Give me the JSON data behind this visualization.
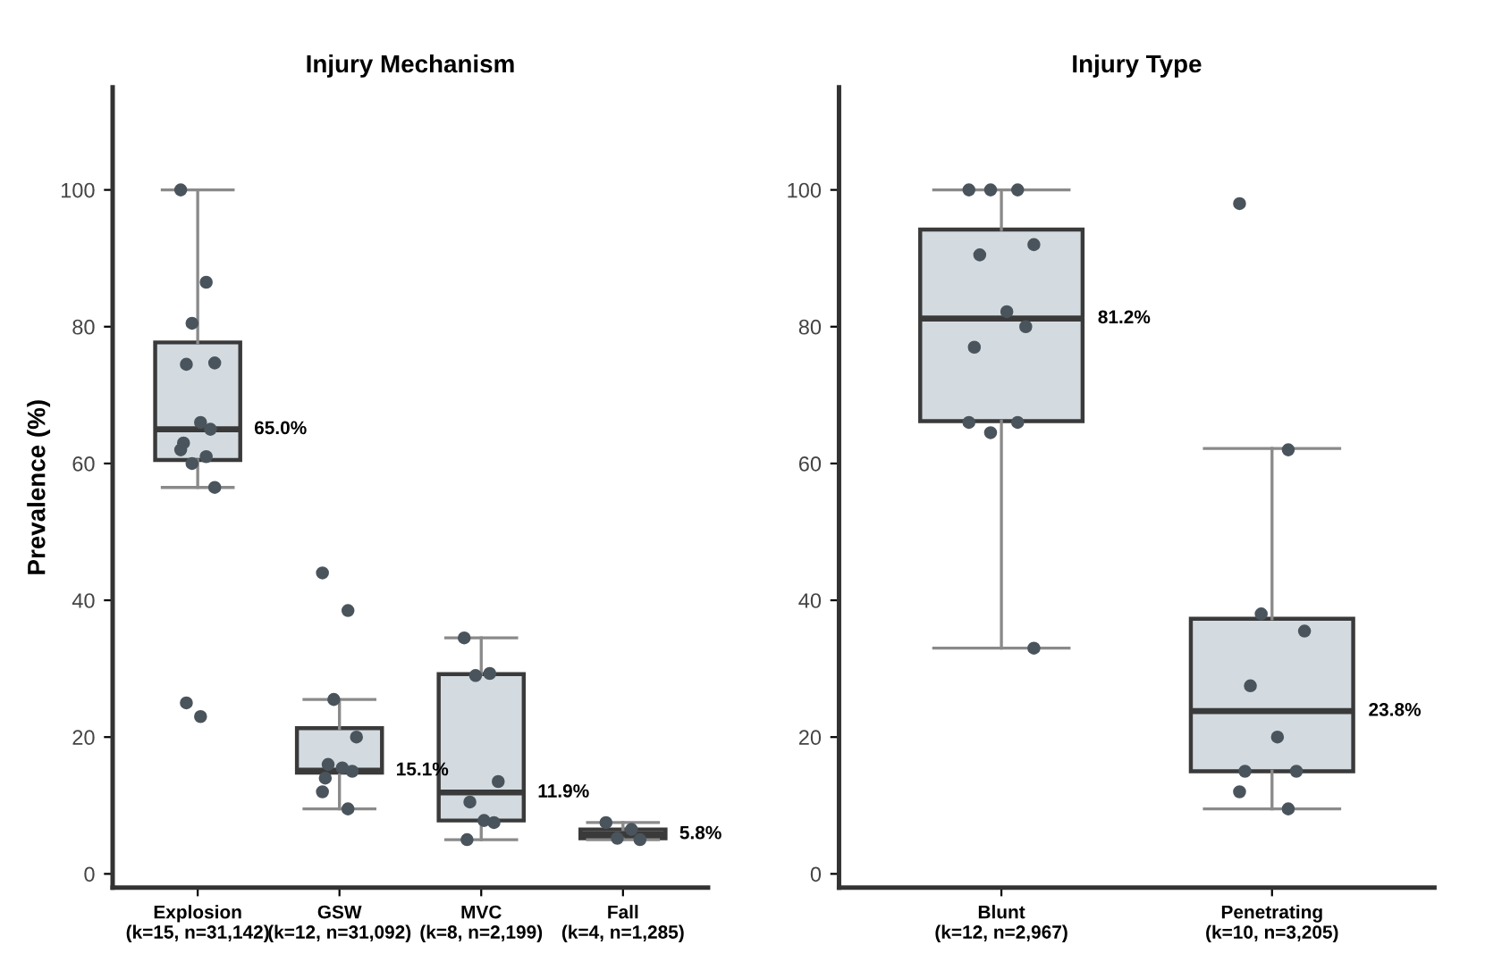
{
  "chart_data": [
    {
      "type": "box",
      "title": "Injury Mechanism",
      "ylabel": "Prevalence (%)",
      "categories": [
        "Explosion\n(k=15, n=31,142)",
        "GSW\n(k=12, n=31,092)",
        "MVC\n(k=8, n=2,199)",
        "Fall\n(k=4, n=1,285)"
      ],
      "color": "#d3dbe0",
      "ylim": [
        -2,
        115
      ],
      "yticks": [
        0,
        20,
        40,
        60,
        80,
        100
      ],
      "grid": false,
      "legend": false,
      "boxes": [
        {
          "low": 56.5,
          "q1": 60.5,
          "median": 65.0,
          "q3": 77.7,
          "high": 100
        },
        {
          "low": 9.5,
          "q1": 14.8,
          "median": 15.1,
          "q3": 21.3,
          "high": 25.5
        },
        {
          "low": 5,
          "q1": 7.8,
          "median": 11.9,
          "q3": 29.2,
          "high": 34.5
        },
        {
          "low": 5,
          "q1": 5.2,
          "median": 5.8,
          "q3": 6.5,
          "high": 7.5
        }
      ],
      "series": [
        {
          "type": "scatter",
          "color": "#4a545c",
          "x": [
            "Explosion\n(k=15, n=31,142)",
            "Explosion\n(k=15, n=31,142)",
            "Explosion\n(k=15, n=31,142)",
            "Explosion\n(k=15, n=31,142)",
            "Explosion\n(k=15, n=31,142)",
            "Explosion\n(k=15, n=31,142)",
            "Explosion\n(k=15, n=31,142)",
            "Explosion\n(k=15, n=31,142)",
            "Explosion\n(k=15, n=31,142)",
            "Explosion\n(k=15, n=31,142)",
            "Explosion\n(k=15, n=31,142)",
            "Explosion\n(k=15, n=31,142)",
            "Explosion\n(k=15, n=31,142)",
            "Explosion\n(k=15, n=31,142)"
          ],
          "values": [
            100,
            86.5,
            80.5,
            74.7,
            74.5,
            66,
            65,
            63,
            62,
            61,
            60,
            56.5,
            25,
            23
          ]
        },
        {
          "type": "scatter",
          "color": "#4a545c",
          "x": [
            "GSW\n(k=12, n=31,092)",
            "GSW\n(k=12, n=31,092)",
            "GSW\n(k=12, n=31,092)",
            "GSW\n(k=12, n=31,092)",
            "GSW\n(k=12, n=31,092)",
            "GSW\n(k=12, n=31,092)",
            "GSW\n(k=12, n=31,092)",
            "GSW\n(k=12, n=31,092)",
            "GSW\n(k=12, n=31,092)",
            "GSW\n(k=12, n=31,092)"
          ],
          "values": [
            44,
            38.5,
            25.5,
            20,
            16,
            15.5,
            15,
            14,
            12,
            9.5
          ]
        },
        {
          "type": "scatter",
          "color": "#4a545c",
          "x": [
            "MVC\n(k=8, n=2,199)",
            "MVC\n(k=8, n=2,199)",
            "MVC\n(k=8, n=2,199)",
            "MVC\n(k=8, n=2,199)",
            "MVC\n(k=8, n=2,199)",
            "MVC\n(k=8, n=2,199)",
            "MVC\n(k=8, n=2,199)",
            "MVC\n(k=8, n=2,199)"
          ],
          "values": [
            34.5,
            29.3,
            29.0,
            13.5,
            10.5,
            7.8,
            7.5,
            5
          ]
        },
        {
          "type": "scatter",
          "color": "#4a545c",
          "x": [
            "Fall\n(k=4, n=1,285)",
            "Fall\n(k=4, n=1,285)",
            "Fall\n(k=4, n=1,285)",
            "Fall\n(k=4, n=1,285)"
          ],
          "values": [
            7.5,
            6.5,
            5.2,
            5
          ]
        }
      ],
      "annotations": [
        "65.0%",
        "15.1%",
        "11.9%",
        "5.8%"
      ]
    },
    {
      "type": "box",
      "title": "Injury Type",
      "categories": [
        "Blunt\n(k=12, n=2,967)",
        "Penetrating\n(k=10, n=3,205)"
      ],
      "color": "#d3dbe0",
      "ylim": [
        -2,
        115
      ],
      "yticks": [
        0,
        20,
        40,
        60,
        80,
        100
      ],
      "grid": false,
      "legend": false,
      "boxes": [
        {
          "low": 33,
          "q1": 66.2,
          "median": 81.2,
          "q3": 94.2,
          "high": 100
        },
        {
          "low": 9.5,
          "q1": 15,
          "median": 23.8,
          "q3": 37.3,
          "high": 62.2
        }
      ],
      "series": [
        {
          "type": "scatter",
          "color": "#4a545c",
          "x": [
            "Blunt\n(k=12, n=2,967)",
            "Blunt\n(k=12, n=2,967)",
            "Blunt\n(k=12, n=2,967)",
            "Blunt\n(k=12, n=2,967)",
            "Blunt\n(k=12, n=2,967)",
            "Blunt\n(k=12, n=2,967)",
            "Blunt\n(k=12, n=2,967)",
            "Blunt\n(k=12, n=2,967)",
            "Blunt\n(k=12, n=2,967)",
            "Blunt\n(k=12, n=2,967)",
            "Blunt\n(k=12, n=2,967)",
            "Blunt\n(k=12, n=2,967)"
          ],
          "values": [
            100,
            100,
            100,
            92,
            90.5,
            82.2,
            80,
            77,
            66,
            66,
            64.5,
            33
          ]
        },
        {
          "type": "scatter",
          "color": "#4a545c",
          "x": [
            "Penetrating\n(k=10, n=3,205)",
            "Penetrating\n(k=10, n=3,205)",
            "Penetrating\n(k=10, n=3,205)",
            "Penetrating\n(k=10, n=3,205)",
            "Penetrating\n(k=10, n=3,205)",
            "Penetrating\n(k=10, n=3,205)",
            "Penetrating\n(k=10, n=3,205)",
            "Penetrating\n(k=10, n=3,205)",
            "Penetrating\n(k=10, n=3,205)",
            "Penetrating\n(k=10, n=3,205)"
          ],
          "values": [
            98,
            62,
            38,
            35.5,
            27.5,
            20,
            15,
            15,
            12,
            9.5
          ]
        }
      ],
      "annotations": [
        "81.2%",
        "23.8%"
      ]
    }
  ]
}
